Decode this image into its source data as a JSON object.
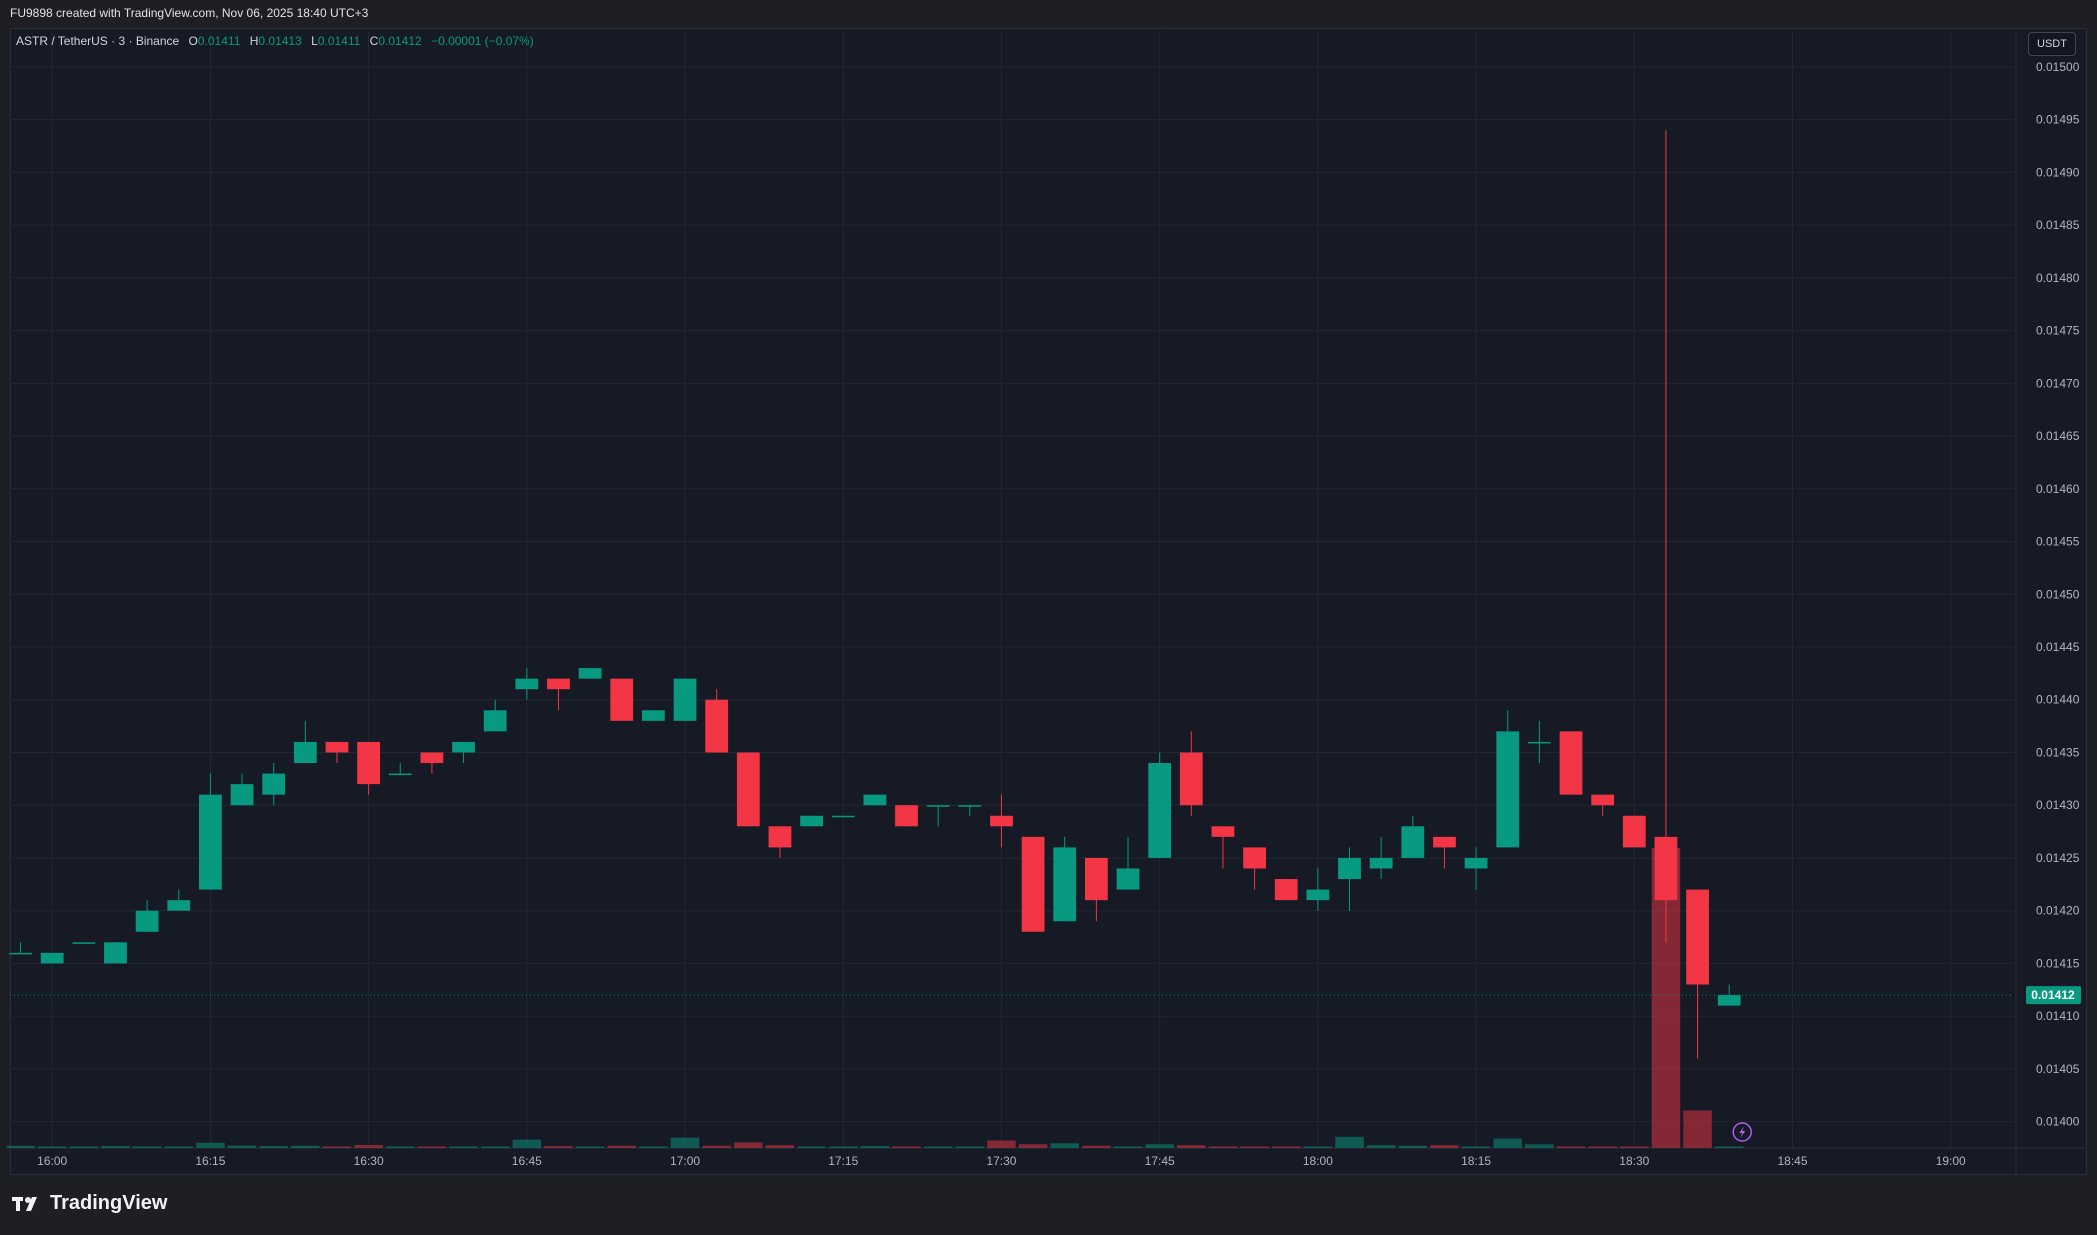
{
  "header": {
    "caption": "FU9898 created with TradingView.com, Nov 06, 2025 18:40 UTC+3"
  },
  "legend": {
    "symbol": "ASTR / TetherUS · 3 · Binance",
    "open_label": "O",
    "open": "0.01411",
    "high_label": "H",
    "high": "0.01413",
    "low_label": "L",
    "low": "0.01411",
    "close_label": "C",
    "close": "0.01412",
    "change": "−0.00001 (−0.07%)"
  },
  "currency": "USDT",
  "brand": {
    "name": "TradingView",
    "logo_icon": "tradingview-logo-icon"
  },
  "colors": {
    "up": "#089981",
    "down": "#f23645",
    "background": "#161a25",
    "grid": "#232733",
    "text": "#d1d4dc"
  },
  "chart_data": {
    "type": "candlestick",
    "symbol": "ASTR/USDT",
    "interval_minutes": 3,
    "y_axis": {
      "ticks": [
        "0.01400",
        "0.01405",
        "0.01410",
        "0.01415",
        "0.01420",
        "0.01425",
        "0.01430",
        "0.01435",
        "0.01440",
        "0.01445",
        "0.01450",
        "0.01455",
        "0.01460",
        "0.01465",
        "0.01470",
        "0.01475",
        "0.01480",
        "0.01485",
        "0.01490",
        "0.01495",
        "0.01500"
      ],
      "range": [
        0.013975,
        0.015035
      ]
    },
    "x_axis": {
      "ticks": [
        "16:00",
        "16:15",
        "16:30",
        "16:45",
        "17:00",
        "17:15",
        "17:30",
        "17:45",
        "18:00",
        "18:15",
        "18:30",
        "18:45",
        "19:00"
      ],
      "range": [
        "15:56",
        "19:06"
      ]
    },
    "last_price": "0.01412",
    "grid": true,
    "candles": [
      {
        "t": "15:57",
        "o": 0.01416,
        "h": 0.01417,
        "l": 0.01416,
        "c": 0.01416
      },
      {
        "t": "16:00",
        "o": 0.01415,
        "h": 0.01416,
        "l": 0.01415,
        "c": 0.01416
      },
      {
        "t": "16:03",
        "o": 0.01417,
        "h": 0.01417,
        "l": 0.01417,
        "c": 0.01417
      },
      {
        "t": "16:06",
        "o": 0.01415,
        "h": 0.01417,
        "l": 0.01415,
        "c": 0.01417
      },
      {
        "t": "16:09",
        "o": 0.01418,
        "h": 0.01421,
        "l": 0.01418,
        "c": 0.0142
      },
      {
        "t": "16:12",
        "o": 0.0142,
        "h": 0.01422,
        "l": 0.0142,
        "c": 0.01421
      },
      {
        "t": "16:15",
        "o": 0.01422,
        "h": 0.01433,
        "l": 0.01422,
        "c": 0.01431
      },
      {
        "t": "16:18",
        "o": 0.0143,
        "h": 0.01433,
        "l": 0.0143,
        "c": 0.01432
      },
      {
        "t": "16:21",
        "o": 0.01431,
        "h": 0.01434,
        "l": 0.0143,
        "c": 0.01433
      },
      {
        "t": "16:24",
        "o": 0.01434,
        "h": 0.01438,
        "l": 0.01434,
        "c": 0.01436
      },
      {
        "t": "16:27",
        "o": 0.01436,
        "h": 0.01436,
        "l": 0.01434,
        "c": 0.01435
      },
      {
        "t": "16:30",
        "o": 0.01436,
        "h": 0.01436,
        "l": 0.01431,
        "c": 0.01432
      },
      {
        "t": "16:33",
        "o": 0.01433,
        "h": 0.01434,
        "l": 0.01433,
        "c": 0.01433
      },
      {
        "t": "16:36",
        "o": 0.01435,
        "h": 0.01435,
        "l": 0.01433,
        "c": 0.01434
      },
      {
        "t": "16:39",
        "o": 0.01435,
        "h": 0.01436,
        "l": 0.01434,
        "c": 0.01436
      },
      {
        "t": "16:42",
        "o": 0.01437,
        "h": 0.0144,
        "l": 0.01437,
        "c": 0.01439
      },
      {
        "t": "16:45",
        "o": 0.01441,
        "h": 0.01443,
        "l": 0.0144,
        "c": 0.01442
      },
      {
        "t": "16:48",
        "o": 0.01442,
        "h": 0.01442,
        "l": 0.01439,
        "c": 0.01441
      },
      {
        "t": "16:51",
        "o": 0.01442,
        "h": 0.01443,
        "l": 0.01442,
        "c": 0.01443
      },
      {
        "t": "16:54",
        "o": 0.01442,
        "h": 0.01442,
        "l": 0.01438,
        "c": 0.01438
      },
      {
        "t": "16:57",
        "o": 0.01438,
        "h": 0.01439,
        "l": 0.01438,
        "c": 0.01439
      },
      {
        "t": "17:00",
        "o": 0.01438,
        "h": 0.01442,
        "l": 0.01438,
        "c": 0.01442
      },
      {
        "t": "17:03",
        "o": 0.0144,
        "h": 0.01441,
        "l": 0.01435,
        "c": 0.01435
      },
      {
        "t": "17:06",
        "o": 0.01435,
        "h": 0.01435,
        "l": 0.01428,
        "c": 0.01428
      },
      {
        "t": "17:09",
        "o": 0.01428,
        "h": 0.01428,
        "l": 0.01425,
        "c": 0.01426
      },
      {
        "t": "17:12",
        "o": 0.01428,
        "h": 0.01429,
        "l": 0.01428,
        "c": 0.01429
      },
      {
        "t": "17:15",
        "o": 0.01429,
        "h": 0.01429,
        "l": 0.01429,
        "c": 0.01429
      },
      {
        "t": "17:18",
        "o": 0.0143,
        "h": 0.01431,
        "l": 0.0143,
        "c": 0.01431
      },
      {
        "t": "17:21",
        "o": 0.0143,
        "h": 0.0143,
        "l": 0.01428,
        "c": 0.01428
      },
      {
        "t": "17:24",
        "o": 0.0143,
        "h": 0.0143,
        "l": 0.01428,
        "c": 0.0143
      },
      {
        "t": "17:27",
        "o": 0.0143,
        "h": 0.0143,
        "l": 0.01429,
        "c": 0.0143
      },
      {
        "t": "17:30",
        "o": 0.01429,
        "h": 0.01431,
        "l": 0.01426,
        "c": 0.01428
      },
      {
        "t": "17:33",
        "o": 0.01427,
        "h": 0.01427,
        "l": 0.01418,
        "c": 0.01418
      },
      {
        "t": "17:36",
        "o": 0.01419,
        "h": 0.01427,
        "l": 0.01419,
        "c": 0.01426
      },
      {
        "t": "17:39",
        "o": 0.01425,
        "h": 0.01425,
        "l": 0.01419,
        "c": 0.01421
      },
      {
        "t": "17:42",
        "o": 0.01422,
        "h": 0.01427,
        "l": 0.01422,
        "c": 0.01424
      },
      {
        "t": "17:45",
        "o": 0.01425,
        "h": 0.01435,
        "l": 0.01425,
        "c": 0.01434
      },
      {
        "t": "17:48",
        "o": 0.01435,
        "h": 0.01437,
        "l": 0.01429,
        "c": 0.0143
      },
      {
        "t": "17:51",
        "o": 0.01428,
        "h": 0.01428,
        "l": 0.01424,
        "c": 0.01427
      },
      {
        "t": "17:54",
        "o": 0.01426,
        "h": 0.01426,
        "l": 0.01422,
        "c": 0.01424
      },
      {
        "t": "17:57",
        "o": 0.01423,
        "h": 0.01423,
        "l": 0.01421,
        "c": 0.01421
      },
      {
        "t": "18:00",
        "o": 0.01421,
        "h": 0.01424,
        "l": 0.0142,
        "c": 0.01422
      },
      {
        "t": "18:03",
        "o": 0.01423,
        "h": 0.01426,
        "l": 0.0142,
        "c": 0.01425
      },
      {
        "t": "18:06",
        "o": 0.01424,
        "h": 0.01427,
        "l": 0.01423,
        "c": 0.01425
      },
      {
        "t": "18:09",
        "o": 0.01425,
        "h": 0.01429,
        "l": 0.01425,
        "c": 0.01428
      },
      {
        "t": "18:12",
        "o": 0.01427,
        "h": 0.01427,
        "l": 0.01424,
        "c": 0.01426
      },
      {
        "t": "18:15",
        "o": 0.01424,
        "h": 0.01426,
        "l": 0.01422,
        "c": 0.01425
      },
      {
        "t": "18:18",
        "o": 0.01426,
        "h": 0.01439,
        "l": 0.01426,
        "c": 0.01437
      },
      {
        "t": "18:21",
        "o": 0.01436,
        "h": 0.01438,
        "l": 0.01434,
        "c": 0.01436
      },
      {
        "t": "18:24",
        "o": 0.01437,
        "h": 0.01437,
        "l": 0.01431,
        "c": 0.01431
      },
      {
        "t": "18:27",
        "o": 0.01431,
        "h": 0.01431,
        "l": 0.01429,
        "c": 0.0143
      },
      {
        "t": "18:30",
        "o": 0.01429,
        "h": 0.01429,
        "l": 0.01426,
        "c": 0.01426
      },
      {
        "t": "18:33",
        "o": 0.01427,
        "h": 0.01494,
        "l": 0.01417,
        "c": 0.01421
      },
      {
        "t": "18:36",
        "o": 0.01422,
        "h": 0.01422,
        "l": 0.01406,
        "c": 0.01413
      },
      {
        "t": "18:39",
        "o": 0.01411,
        "h": 0.01413,
        "l": 0.01411,
        "c": 0.01412
      }
    ],
    "volume": [
      {
        "t": "15:57",
        "v": 1.2,
        "dir": "up"
      },
      {
        "t": "16:00",
        "v": 0.5,
        "dir": "up"
      },
      {
        "t": "16:03",
        "v": 0.3,
        "dir": "up"
      },
      {
        "t": "16:06",
        "v": 1.0,
        "dir": "up"
      },
      {
        "t": "16:09",
        "v": 0.6,
        "dir": "up"
      },
      {
        "t": "16:12",
        "v": 0.5,
        "dir": "up"
      },
      {
        "t": "16:15",
        "v": 2.8,
        "dir": "up"
      },
      {
        "t": "16:18",
        "v": 1.3,
        "dir": "up"
      },
      {
        "t": "16:21",
        "v": 1.0,
        "dir": "up"
      },
      {
        "t": "16:24",
        "v": 1.2,
        "dir": "up"
      },
      {
        "t": "16:27",
        "v": 0.5,
        "dir": "down"
      },
      {
        "t": "16:30",
        "v": 1.6,
        "dir": "down"
      },
      {
        "t": "16:33",
        "v": 0.4,
        "dir": "up"
      },
      {
        "t": "16:36",
        "v": 0.5,
        "dir": "down"
      },
      {
        "t": "16:39",
        "v": 0.4,
        "dir": "up"
      },
      {
        "t": "16:42",
        "v": 0.5,
        "dir": "up"
      },
      {
        "t": "16:45",
        "v": 4.5,
        "dir": "up"
      },
      {
        "t": "16:48",
        "v": 1.0,
        "dir": "down"
      },
      {
        "t": "16:51",
        "v": 0.6,
        "dir": "up"
      },
      {
        "t": "16:54",
        "v": 1.2,
        "dir": "down"
      },
      {
        "t": "16:57",
        "v": 0.5,
        "dir": "up"
      },
      {
        "t": "17:00",
        "v": 5.5,
        "dir": "up"
      },
      {
        "t": "17:03",
        "v": 1.2,
        "dir": "down"
      },
      {
        "t": "17:06",
        "v": 3.0,
        "dir": "down"
      },
      {
        "t": "17:09",
        "v": 1.5,
        "dir": "down"
      },
      {
        "t": "17:12",
        "v": 0.4,
        "dir": "up"
      },
      {
        "t": "17:15",
        "v": 0.3,
        "dir": "up"
      },
      {
        "t": "17:18",
        "v": 1.0,
        "dir": "up"
      },
      {
        "t": "17:21",
        "v": 0.8,
        "dir": "down"
      },
      {
        "t": "17:24",
        "v": 0.4,
        "dir": "up"
      },
      {
        "t": "17:27",
        "v": 0.4,
        "dir": "up"
      },
      {
        "t": "17:30",
        "v": 4.0,
        "dir": "down"
      },
      {
        "t": "17:33",
        "v": 2.0,
        "dir": "down"
      },
      {
        "t": "17:36",
        "v": 2.5,
        "dir": "up"
      },
      {
        "t": "17:39",
        "v": 1.2,
        "dir": "down"
      },
      {
        "t": "17:42",
        "v": 0.6,
        "dir": "up"
      },
      {
        "t": "17:45",
        "v": 2.0,
        "dir": "up"
      },
      {
        "t": "17:48",
        "v": 1.5,
        "dir": "down"
      },
      {
        "t": "17:51",
        "v": 0.6,
        "dir": "down"
      },
      {
        "t": "17:54",
        "v": 0.8,
        "dir": "down"
      },
      {
        "t": "17:57",
        "v": 0.8,
        "dir": "down"
      },
      {
        "t": "18:00",
        "v": 0.5,
        "dir": "up"
      },
      {
        "t": "18:03",
        "v": 6.0,
        "dir": "up"
      },
      {
        "t": "18:06",
        "v": 1.5,
        "dir": "up"
      },
      {
        "t": "18:09",
        "v": 1.2,
        "dir": "up"
      },
      {
        "t": "18:12",
        "v": 1.5,
        "dir": "down"
      },
      {
        "t": "18:15",
        "v": 0.6,
        "dir": "up"
      },
      {
        "t": "18:18",
        "v": 5.0,
        "dir": "up"
      },
      {
        "t": "18:21",
        "v": 2.0,
        "dir": "up"
      },
      {
        "t": "18:24",
        "v": 0.8,
        "dir": "down"
      },
      {
        "t": "18:27",
        "v": 0.8,
        "dir": "down"
      },
      {
        "t": "18:30",
        "v": 0.8,
        "dir": "down"
      },
      {
        "t": "18:33",
        "v": 160,
        "dir": "down"
      },
      {
        "t": "18:36",
        "v": 20,
        "dir": "down"
      },
      {
        "t": "18:39",
        "v": 0.6,
        "dir": "up"
      }
    ]
  }
}
